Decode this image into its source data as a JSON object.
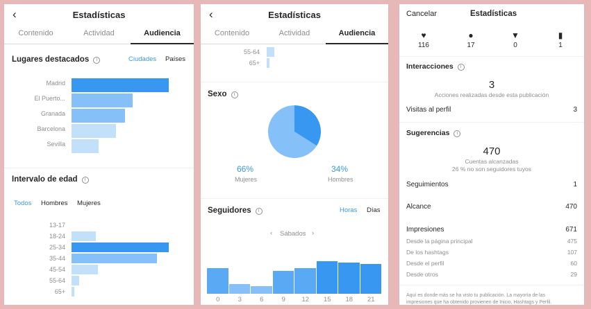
{
  "colors": {
    "bar_dark": "#3897f0",
    "bar_mid": "#86c0f8",
    "bar_light": "#c3e0fb",
    "text_blue": "#3897f0"
  },
  "panel1": {
    "title": "Estadísticas",
    "back_icon": "chevron-left-icon",
    "tabs": [
      "Contenido",
      "Actividad",
      "Audiencia"
    ],
    "active_tab": "Audiencia",
    "places": {
      "title": "Lugares destacados",
      "toggle_cities": "Ciudades",
      "toggle_countries": "Países",
      "items": [
        {
          "label": "Madrid",
          "value": 1.0
        },
        {
          "label": "El Puerto...",
          "value": 0.63
        },
        {
          "label": "Granada",
          "value": 0.55
        },
        {
          "label": "Barcelona",
          "value": 0.46
        },
        {
          "label": "Sevilla",
          "value": 0.28
        }
      ]
    },
    "age": {
      "title": "Intervalo de edad",
      "filters": [
        "Todos",
        "Hombres",
        "Mujeres"
      ],
      "active_filter": "Todos",
      "items": [
        {
          "label": "13-17",
          "value": 0.0
        },
        {
          "label": "18-24",
          "value": 0.25
        },
        {
          "label": "25-34",
          "value": 1.0
        },
        {
          "label": "35-44",
          "value": 0.88
        },
        {
          "label": "45-54",
          "value": 0.27
        },
        {
          "label": "55-64",
          "value": 0.08
        },
        {
          "label": "65+",
          "value": 0.03
        }
      ]
    }
  },
  "panel2": {
    "title": "Estadísticas",
    "tabs": [
      "Contenido",
      "Actividad",
      "Audiencia"
    ],
    "active_tab": "Audiencia",
    "age_tail": [
      {
        "label": "55-64",
        "value": 0.08
      },
      {
        "label": "65+",
        "value": 0.03
      }
    ],
    "gender": {
      "title": "Sexo",
      "women_pct": "66%",
      "women_label": "Mujeres",
      "men_pct": "34%",
      "men_label": "Hombres",
      "women_share": 0.66,
      "men_share": 0.34
    },
    "followers": {
      "title": "Seguidores",
      "toggle_hours": "Horas",
      "toggle_days": "Días",
      "day": "Sábados",
      "prev_icon": "chevron-left-icon",
      "next_icon": "chevron-right-icon",
      "x_labels": [
        "0",
        "3",
        "6",
        "9",
        "12",
        "15",
        "18",
        "21"
      ],
      "values": [
        0.77,
        0.3,
        0.22,
        0.69,
        0.78,
        0.98,
        0.93,
        0.9
      ]
    }
  },
  "panel3": {
    "cancel": "Cancelar",
    "title": "Estadísticas",
    "counts": [
      {
        "icon": "heart-icon",
        "value": "116"
      },
      {
        "icon": "comment-icon",
        "value": "17"
      },
      {
        "icon": "send-icon",
        "value": "0"
      },
      {
        "icon": "bookmark-icon",
        "value": "1"
      }
    ],
    "interactions": {
      "title": "Interacciones",
      "value": "3",
      "caption": "Acciones realizadas desde esta publicación",
      "profile_visits_label": "Visitas al perfil",
      "profile_visits_value": "3"
    },
    "suggestions": {
      "title": "Sugerencias",
      "value": "470",
      "caption": "Cuentas alcanzadas",
      "caption2": "26 % no son seguidores tuyos",
      "rows": [
        {
          "label": "Seguimientos",
          "value": "1"
        },
        {
          "label": "Alcance",
          "value": "470"
        },
        {
          "label": "Impresiones",
          "value": "671"
        }
      ],
      "subrows": [
        {
          "label": "Desde la página principal",
          "value": "475"
        },
        {
          "label": "De los hashtags",
          "value": "107"
        },
        {
          "label": "Desde el perfil",
          "value": "60"
        },
        {
          "label": "Desde otros",
          "value": "29"
        }
      ],
      "footnote1": "Aquí es donde más se ha visto tu publicación. La mayoría de las",
      "footnote2": "impresiones que ha obtenido provienen de Inicio, Hashtags y Perfil."
    }
  }
}
